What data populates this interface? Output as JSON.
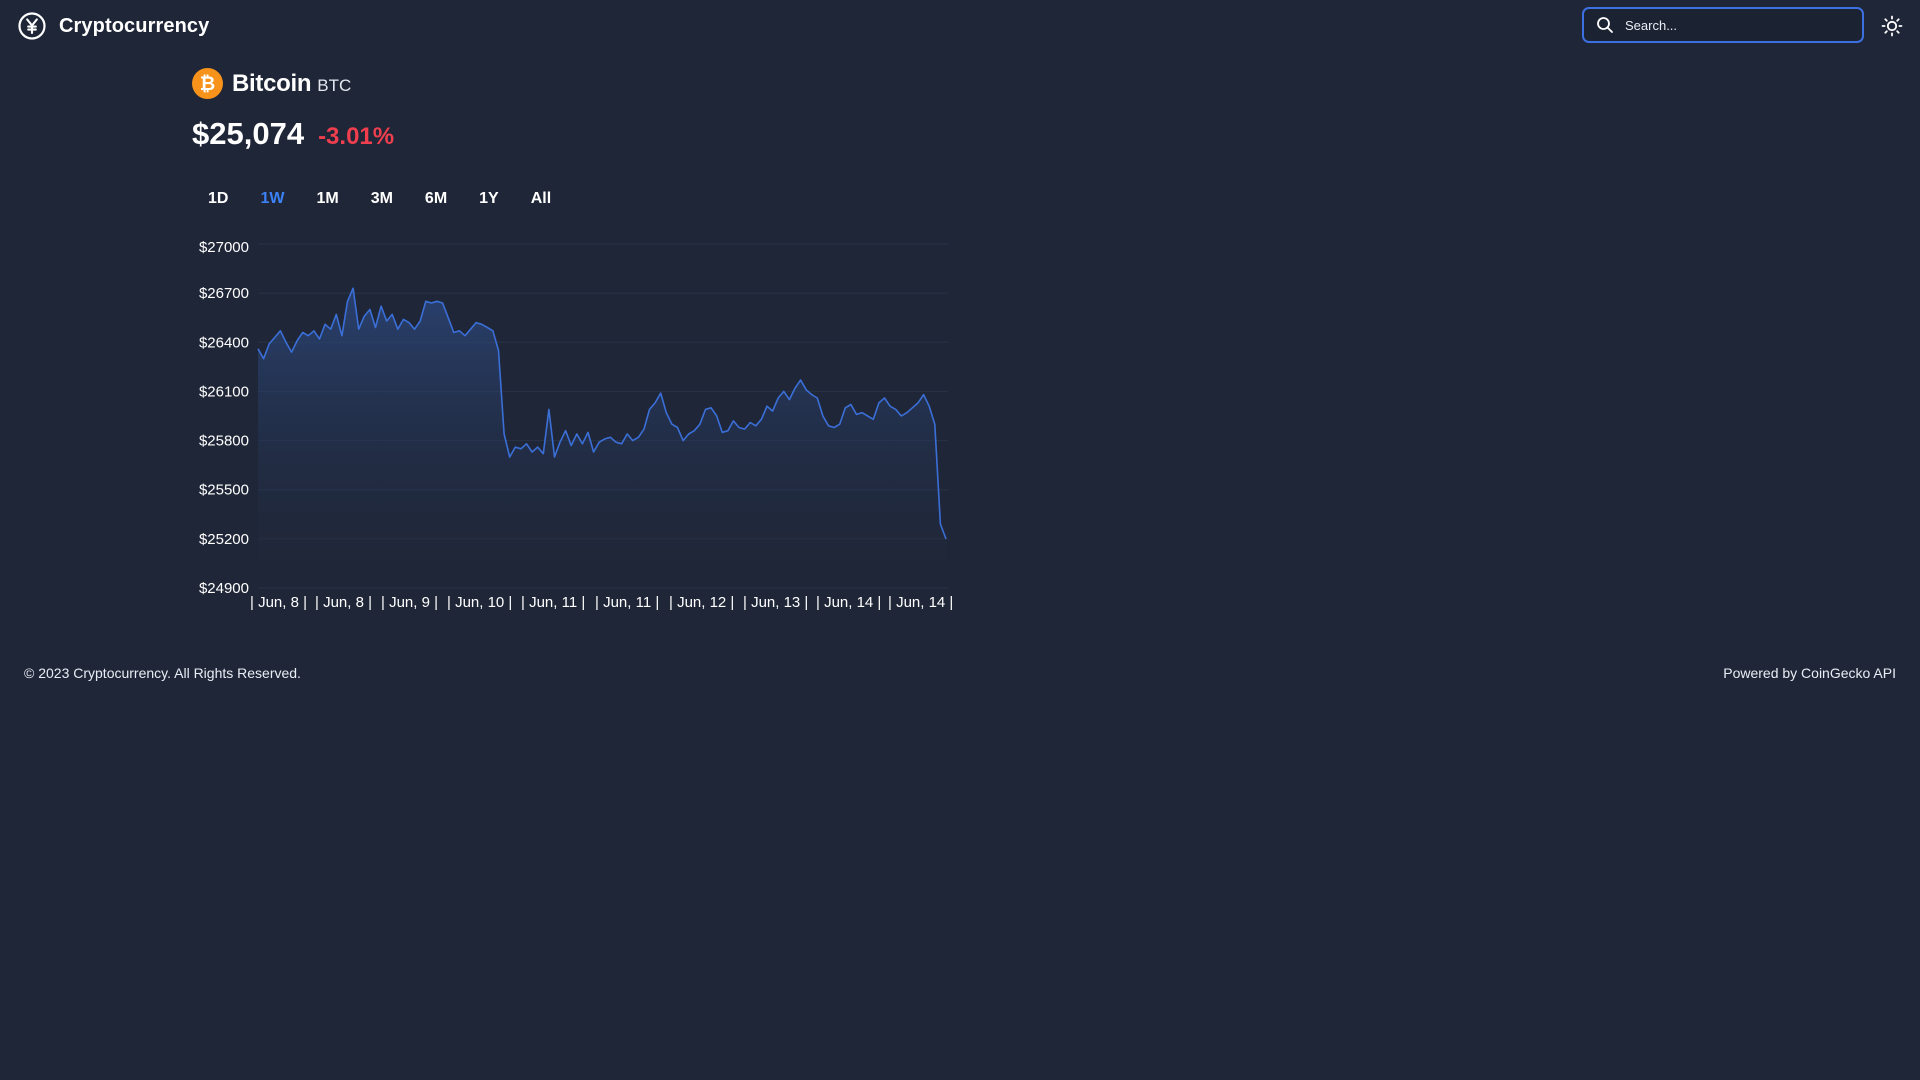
{
  "app": {
    "title": "Cryptocurrency"
  },
  "search": {
    "placeholder": "Search..."
  },
  "coin": {
    "name": "Bitcoin",
    "symbol": "BTC",
    "price": "$25,074",
    "change": "-3.01%",
    "logo_color": "#f7931a"
  },
  "range_tabs": [
    {
      "label": "1D",
      "active": false
    },
    {
      "label": "1W",
      "active": true
    },
    {
      "label": "1M",
      "active": false
    },
    {
      "label": "3M",
      "active": false
    },
    {
      "label": "6M",
      "active": false
    },
    {
      "label": "1Y",
      "active": false
    },
    {
      "label": "All",
      "active": false
    }
  ],
  "colors": {
    "background": "#1f2637",
    "accent": "#3b82f6",
    "negative": "#ef3f4f",
    "line": "#3b6fd8"
  },
  "chart_data": {
    "type": "area",
    "ylim": [
      24900,
      27000
    ],
    "y_ticks": [
      "$27000",
      "$26700",
      "$26400",
      "$26100",
      "$25800",
      "$25500",
      "$25200",
      "$24900"
    ],
    "x_ticks": [
      "| Jun, 8 |",
      "| Jun, 8 |",
      "| Jun, 9 |",
      "| Jun, 10 |",
      "| Jun, 11 |",
      "| Jun, 11 |",
      "| Jun, 12 |",
      "| Jun, 13 |",
      "| Jun, 14 |",
      "| Jun, 14 |"
    ],
    "grid": true,
    "series": [
      {
        "values": [
          26360,
          26300,
          26390,
          26430,
          26470,
          26400,
          26340,
          26410,
          26460,
          26440,
          26470,
          26420,
          26510,
          26480,
          26570,
          26440,
          26650,
          26730,
          26480,
          26560,
          26600,
          26490,
          26620,
          26530,
          26570,
          26480,
          26540,
          26520,
          26480,
          26530,
          26650,
          26640,
          26650,
          26640,
          26550,
          26460,
          26470,
          26440,
          26480,
          26520,
          26510,
          26490,
          26470,
          26350,
          25840,
          25700,
          25760,
          25750,
          25780,
          25730,
          25760,
          25720,
          25990,
          25700,
          25790,
          25860,
          25770,
          25840,
          25780,
          25850,
          25730,
          25790,
          25810,
          25820,
          25790,
          25780,
          25840,
          25800,
          25820,
          25870,
          25990,
          26030,
          26090,
          25970,
          25900,
          25880,
          25800,
          25840,
          25860,
          25900,
          25990,
          26000,
          25950,
          25850,
          25860,
          25920,
          25880,
          25870,
          25910,
          25890,
          25930,
          26010,
          25980,
          26060,
          26100,
          26050,
          26120,
          26170,
          26110,
          26080,
          26060,
          25950,
          25890,
          25880,
          25900,
          26000,
          26020,
          25960,
          25970,
          25950,
          25930,
          26030,
          26060,
          26010,
          25990,
          25950,
          25970,
          26000,
          26030,
          26080,
          26010,
          25900,
          25290,
          25200
        ]
      }
    ]
  },
  "footer": {
    "copyright": "© 2023 Cryptocurrency. All Rights Reserved.",
    "powered_by": "Powered by CoinGecko API"
  }
}
